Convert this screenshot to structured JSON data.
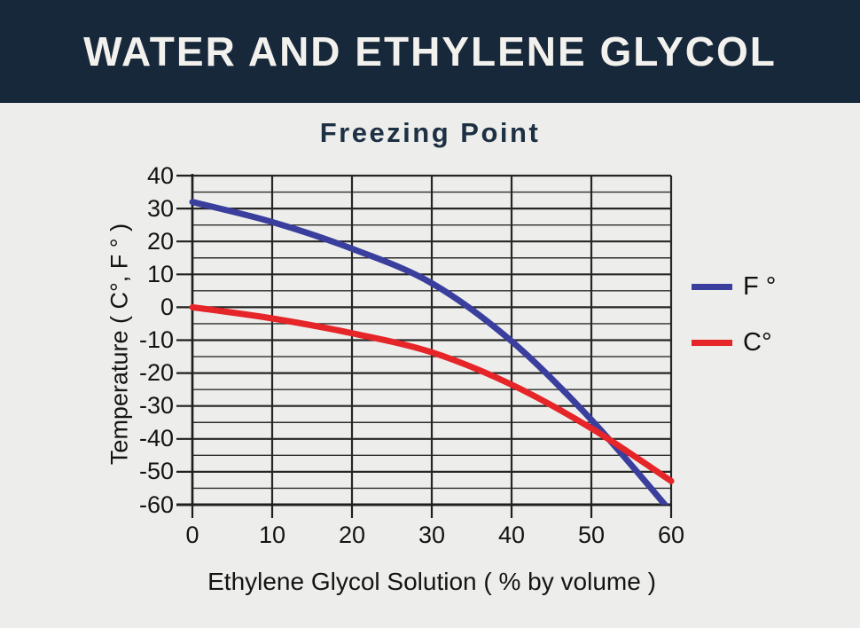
{
  "header": {
    "title": "WATER AND ETHYLENE GLYCOL"
  },
  "chart": {
    "title": "Freezing Point",
    "x_axis": {
      "title": "Ethylene Glycol Solution ( % by volume )"
    },
    "y_axis": {
      "title": "Temperature ( C°, F ° )"
    }
  },
  "legend": {
    "items": [
      {
        "label": "F °",
        "color": "#3A3F9E"
      },
      {
        "label": "C°",
        "color": "#E52528"
      }
    ]
  },
  "colors": {
    "header_bg": "#16283A",
    "header_text": "#F3F1ED",
    "body_bg": "#EDEDEB",
    "subtitle": "#1D3044",
    "grid": "#2D2D2D",
    "fahrenheit_line": "#3A3F9E",
    "celsius_line": "#E52528"
  },
  "chart_data": {
    "type": "line",
    "title": "Freezing Point",
    "x": [
      0,
      10,
      20,
      30,
      40,
      50,
      60
    ],
    "series": [
      {
        "name": "F °",
        "color": "#3A3F9E",
        "values": [
          32,
          25.9,
          17.8,
          7.3,
          -10.3,
          -34.2,
          -62.2
        ]
      },
      {
        "name": "C°",
        "color": "#E52528",
        "values": [
          0,
          -3.4,
          -7.9,
          -13.7,
          -23.5,
          -36.8,
          -52.8
        ]
      }
    ],
    "xlabel": "Ethylene Glycol Solution ( % by volume )",
    "ylabel": "Temperature ( C°, F ° )",
    "xlim": [
      0,
      60
    ],
    "ylim": [
      -60,
      40
    ],
    "x_ticks": [
      0,
      10,
      20,
      30,
      40,
      50,
      60
    ],
    "y_ticks": [
      40,
      30,
      20,
      10,
      0,
      -10,
      -20,
      -30,
      -40,
      -50,
      -60
    ],
    "y_minor_step": 5,
    "grid": true,
    "legend_position": "right",
    "notes": "Curves intersect near 53% / -40° where Celsius equals Fahrenheit; blue F curve is clipped at the -60 chart bottom near 59%."
  }
}
